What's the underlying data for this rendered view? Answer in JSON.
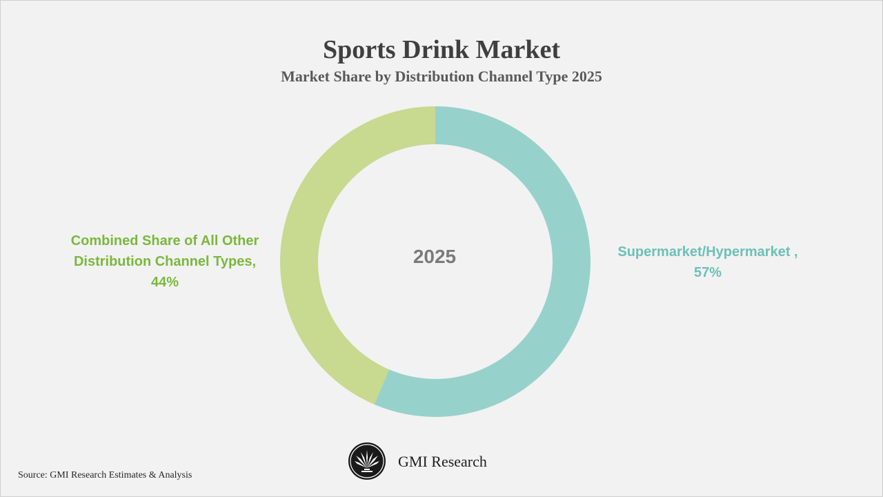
{
  "chart_data": {
    "type": "pie",
    "title": "Sports Drink Market",
    "subtitle": "Market Share by Distribution Channel Type 2025",
    "center_label": "2025",
    "slices": [
      {
        "name": "Supermarket/Hypermarket ,",
        "value": 57,
        "value_label": "57%",
        "color": "#96d2cb"
      },
      {
        "name_lines": [
          "Combined Share of All Other",
          "Distribution Channel Types,"
        ],
        "value": 44,
        "value_label": "44%",
        "color": "#c8d990"
      }
    ],
    "label_colors": {
      "left": "#7ab83c",
      "right": "#6cc0b8"
    }
  },
  "footer": {
    "source": "Source: GMI Research Estimates & Analysis",
    "brand": "GMI Research"
  }
}
